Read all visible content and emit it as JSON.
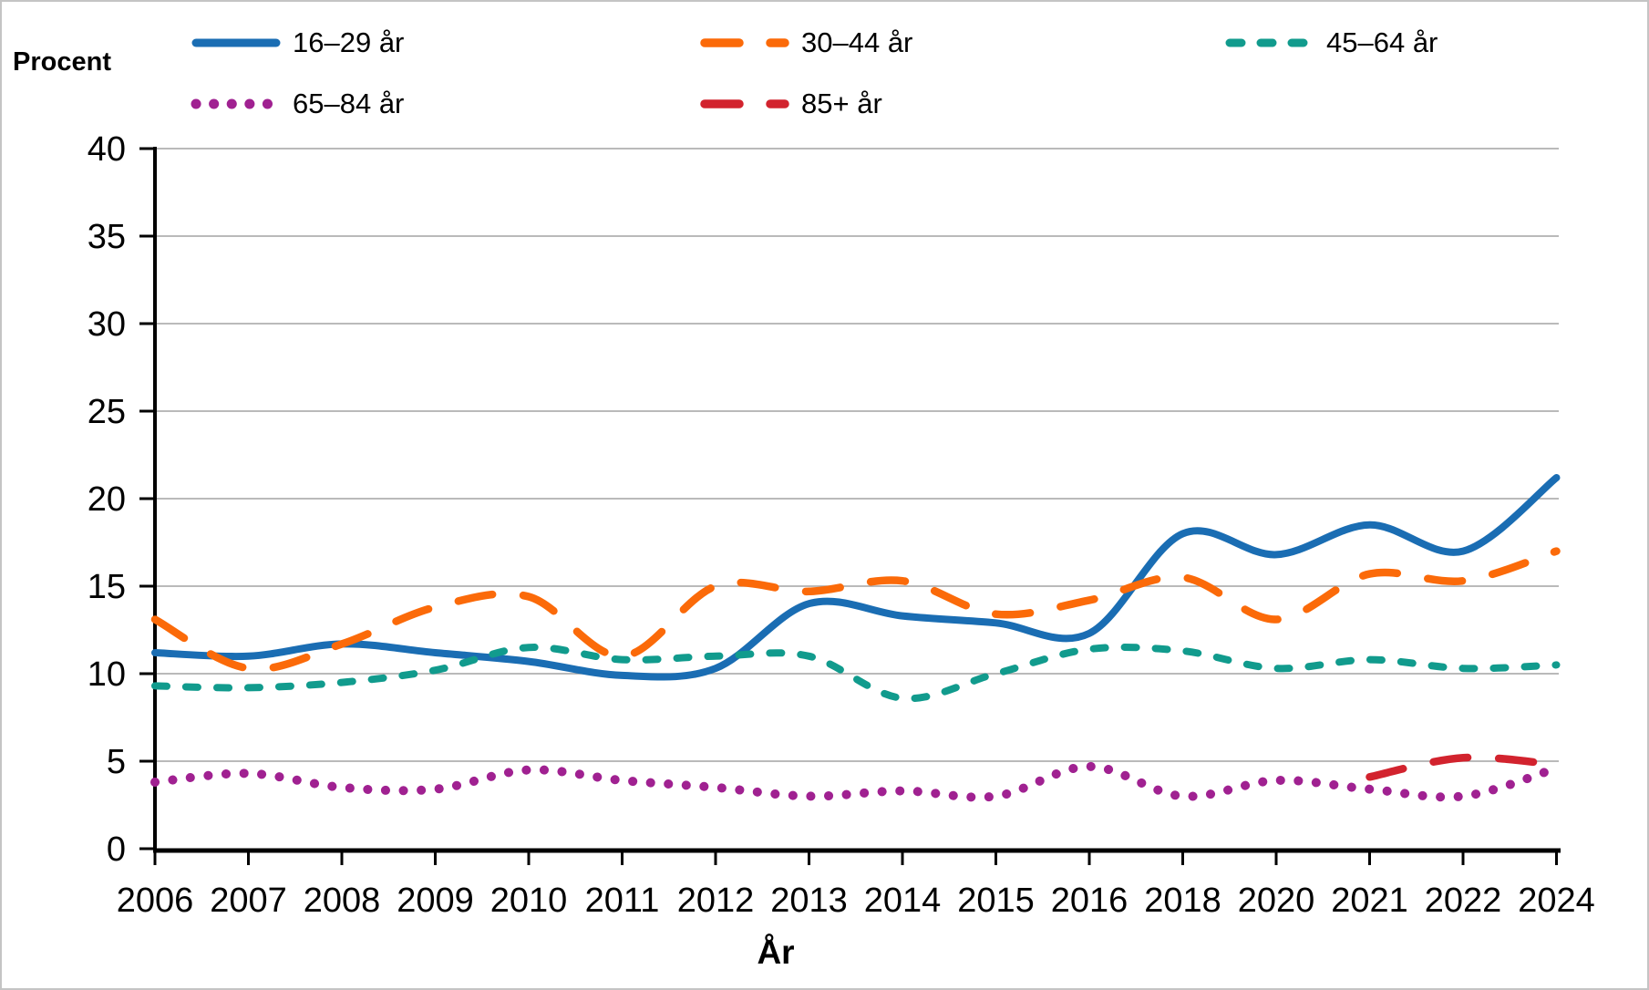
{
  "y_axis": {
    "title": "Procent"
  },
  "x_axis": {
    "title": "År"
  },
  "colors": {
    "background": "#ffffff",
    "frame_border": "#c4c4c4",
    "gridline": "#a3a3a3",
    "axis": "#000000",
    "text": "#000000"
  },
  "chart_data": {
    "type": "line",
    "title": "",
    "xlabel": "År",
    "ylabel": "Procent",
    "ylim": [
      0,
      40
    ],
    "y_tick_step": 5,
    "y_ticks": [
      0,
      5,
      10,
      15,
      20,
      25,
      30,
      35,
      40
    ],
    "grid": true,
    "legend_position": "top",
    "categories": [
      "2006",
      "2007",
      "2008",
      "2009",
      "2010",
      "2011",
      "2012",
      "2013",
      "2014",
      "2015",
      "2016",
      "2018",
      "2020",
      "2021",
      "2022",
      "2024"
    ],
    "series": [
      {
        "name": "16–29 år",
        "color": "#1a6db3",
        "line_style": "solid",
        "values": [
          11.2,
          11.0,
          11.7,
          11.2,
          10.7,
          9.9,
          10.3,
          14.0,
          13.3,
          12.9,
          12.3,
          18.0,
          16.8,
          18.5,
          17.0,
          21.2
        ]
      },
      {
        "name": "30–44 år",
        "color": "#fb6a09",
        "line_style": "long-dash",
        "values": [
          13.1,
          10.3,
          11.7,
          13.8,
          14.4,
          11.0,
          15.0,
          14.7,
          15.3,
          13.4,
          14.2,
          15.5,
          13.1,
          15.7,
          15.3,
          17.0
        ]
      },
      {
        "name": "45–64 år",
        "color": "#119b8d",
        "line_style": "dash",
        "values": [
          9.3,
          9.2,
          9.5,
          10.2,
          11.5,
          10.8,
          11.0,
          11.0,
          8.6,
          10.0,
          11.4,
          11.3,
          10.3,
          10.8,
          10.3,
          10.5
        ]
      },
      {
        "name": "65–84 år",
        "color": "#a02191",
        "line_style": "dot",
        "values": [
          3.8,
          4.3,
          3.5,
          3.4,
          4.5,
          3.9,
          3.5,
          3.0,
          3.3,
          3.0,
          4.7,
          3.0,
          3.9,
          3.4,
          3.0,
          4.6
        ]
      },
      {
        "name": "85+ år",
        "color": "#d2232e",
        "line_style": "long-dash",
        "values": [
          null,
          null,
          null,
          null,
          null,
          null,
          null,
          null,
          null,
          null,
          null,
          null,
          null,
          4.1,
          5.2,
          4.8
        ]
      }
    ]
  }
}
